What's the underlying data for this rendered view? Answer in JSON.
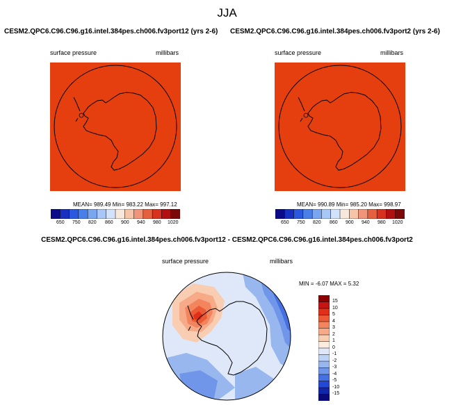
{
  "season": "JJA",
  "left_panel": {
    "title": "CESM2.QPC6.C96.C96.g16.intel.384pes.ch006.fv3port12 (yrs 2-6)",
    "variable": "surface pressure",
    "units": "millibars",
    "stats": "MEAN= 989.49  Min= 983.22  Max= 997.12",
    "fill_color": "#e53f10"
  },
  "right_panel": {
    "title": "CESM2.QPC6.C96.C96.g16.intel.384pes.ch006.fv3port2 (yrs 2-6)",
    "variable": "surface pressure",
    "units": "millibars",
    "stats": "MEAN= 990.89  Min= 985.20  Max= 998.97",
    "fill_color": "#e53f10"
  },
  "h_colorbar": {
    "ticks": [
      "650",
      "750",
      "820",
      "860",
      "900",
      "940",
      "980",
      "1020"
    ],
    "colors": [
      "#0b0b8a",
      "#1730c0",
      "#2a58e0",
      "#4a7fe8",
      "#7aa6f0",
      "#a8c6f6",
      "#d3e2fb",
      "#f7e7dc",
      "#f6c4a8",
      "#f0957a",
      "#e5603f",
      "#d8321e",
      "#b01010",
      "#7a0a0a"
    ]
  },
  "diff_panel": {
    "title": "CESM2.QPC6.C96.C96.g16.intel.384pes.ch006.fv3port12 - CESM2.QPC6.C96.C96.g16.intel.384pes.ch006.fv3port2",
    "variable": "surface pressure",
    "units": "millibars",
    "stats": "MIN =  -6.07 MAX =   5.32"
  },
  "v_colorbar": {
    "labels": [
      "15",
      "10",
      "5",
      "4",
      "3",
      "2",
      "1",
      "0",
      "-1",
      "-2",
      "-3",
      "-4",
      "-5",
      "-10",
      "-15"
    ],
    "colors": [
      "#8c0000",
      "#c41414",
      "#e03018",
      "#ea5a34",
      "#f2845e",
      "#f6aa88",
      "#f8cdb2",
      "#fbece0",
      "#dfe8f8",
      "#bdd2f4",
      "#97b7ee",
      "#6f96e8",
      "#4670e2",
      "#2548d4",
      "#1226a8",
      "#0a0a78"
    ]
  }
}
